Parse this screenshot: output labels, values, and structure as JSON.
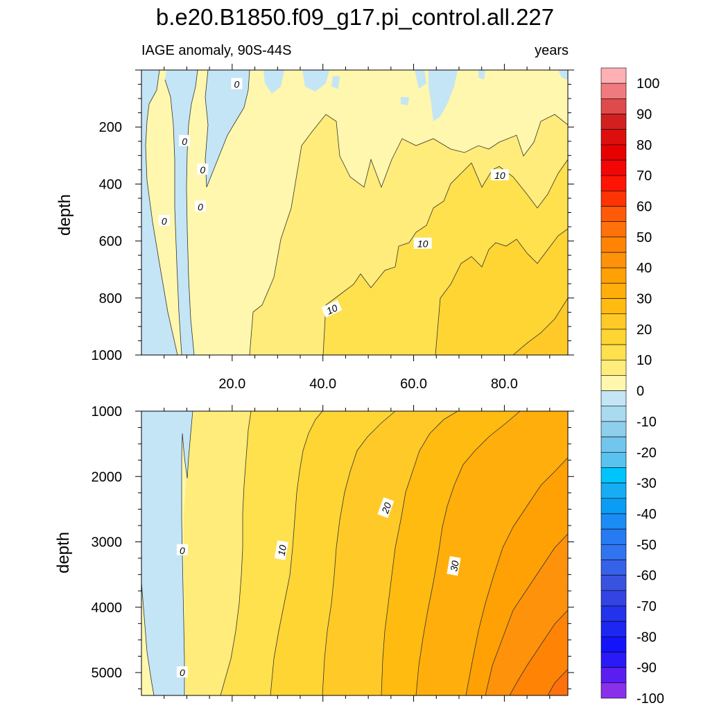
{
  "title": "b.e20.B1850.f09_g17.pi_control.all.227",
  "subtitle_left": "IAGE anomaly, 90S-44S",
  "subtitle_right": "years",
  "chart_data": [
    {
      "type": "contour",
      "panel": "upper",
      "ylabel": "depth",
      "xlim": [
        0,
        94
      ],
      "ylim": [
        1000,
        0
      ],
      "x_ticks": [
        20,
        40,
        60,
        80
      ],
      "x_tick_labels": [
        "20.0",
        "40.0",
        "60.0",
        "80.0"
      ],
      "y_ticks": [
        200,
        400,
        600,
        800,
        1000
      ],
      "y_tick_labels": [
        "200",
        "400",
        "600",
        "800",
        "1000"
      ],
      "contour_labels": [
        {
          "text": "0",
          "x": 21,
          "y": 50
        },
        {
          "text": "0",
          "x": 9.5,
          "y": 250
        },
        {
          "text": "0",
          "x": 13.5,
          "y": 350
        },
        {
          "text": "0",
          "x": 13,
          "y": 480
        },
        {
          "text": "0",
          "x": 5,
          "y": 530
        },
        {
          "text": "10",
          "x": 79,
          "y": 370
        },
        {
          "text": "10",
          "x": 62,
          "y": 610
        },
        {
          "text": "10",
          "x": 42,
          "y": 840
        }
      ]
    },
    {
      "type": "contour",
      "panel": "lower",
      "ylabel": "depth",
      "xlim": [
        0,
        94
      ],
      "ylim": [
        5350,
        1000
      ],
      "x_ticks": [
        20,
        40,
        60,
        80
      ],
      "x_tick_labels": [],
      "y_ticks": [
        1000,
        2000,
        3000,
        4000,
        5000
      ],
      "y_tick_labels": [
        "1000",
        "2000",
        "3000",
        "4000",
        "5000"
      ],
      "contour_labels": [
        {
          "text": "0",
          "x": 9,
          "y": 3130
        },
        {
          "text": "0",
          "x": 9,
          "y": 5000
        },
        {
          "text": "10",
          "x": 31,
          "y": 3130
        },
        {
          "text": "20",
          "x": 54,
          "y": 2480
        },
        {
          "text": "30",
          "x": 69,
          "y": 3370
        }
      ]
    }
  ],
  "colorbar": {
    "levels": [
      100,
      95,
      90,
      85,
      80,
      75,
      70,
      65,
      60,
      55,
      50,
      45,
      40,
      35,
      30,
      25,
      20,
      15,
      10,
      5,
      0,
      -5,
      -10,
      -15,
      -20,
      -25,
      -30,
      -35,
      -40,
      -45,
      -50,
      -55,
      -60,
      -65,
      -70,
      -75,
      -80,
      -85,
      -90,
      -95,
      -100
    ],
    "labels": [
      "100",
      "90",
      "80",
      "70",
      "60",
      "50",
      "40",
      "30",
      "20",
      "10",
      "0",
      "-10",
      "-20",
      "-30",
      "-40",
      "-50",
      "-60",
      "-70",
      "-80",
      "-90",
      "-100"
    ],
    "colors": [
      "#ffb0b5",
      "#ef7b7e",
      "#df4a4c",
      "#d2201f",
      "#dc0f0e",
      "#e60000",
      "#f20606",
      "#ff1405",
      "#ff3405",
      "#ff5a08",
      "#ff710a",
      "#ff8406",
      "#ff920b",
      "#ffa005",
      "#ffae0b",
      "#ffbb10",
      "#ffca27",
      "#ffd534",
      "#ffe04d",
      "#ffec7a",
      "#fff7ad",
      "#c3e5f6",
      "#a9daf0",
      "#8ecfec",
      "#72c6ed",
      "#59c2ef",
      "#00c4fc",
      "#16adf5",
      "#0b9cf5",
      "#1b8cf4",
      "#267bf2",
      "#3074f0",
      "#3662ea",
      "#3952e0",
      "#3443e3",
      "#2233eb",
      "#1e26f2",
      "#1414fb",
      "#2a1af8",
      "#5a1ef0",
      "#8a30ea"
    ]
  },
  "fill_colors": {
    "neg": "#c3e5f6",
    "b0": "#fff7ad",
    "b5": "#ffec7a",
    "b10": "#ffe04d",
    "b15": "#ffd534",
    "b20": "#ffca27",
    "b25": "#ffbb10",
    "b30": "#ffae0b",
    "b35": "#ffa005",
    "b40": "#ff920b",
    "b45": "#ff8406",
    "b50": "#ff710a"
  }
}
